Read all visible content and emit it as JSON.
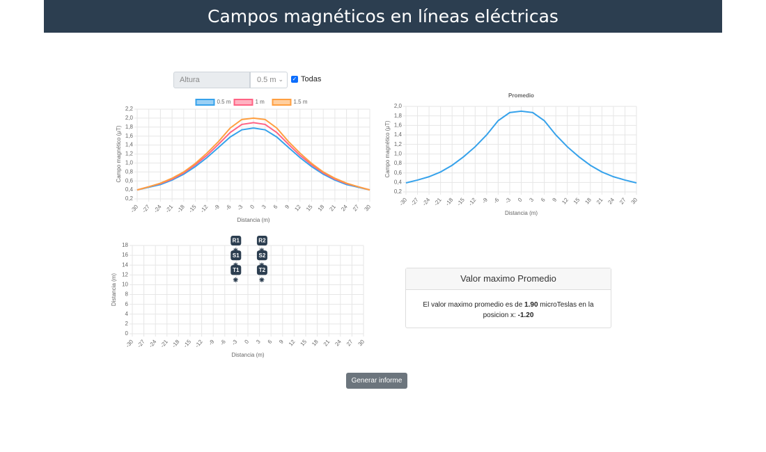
{
  "header": {
    "title": "Campos magnéticos en líneas eléctricas"
  },
  "controls": {
    "label": "Altura",
    "selected": "0.5 m",
    "checkbox": "Todas"
  },
  "chart_data": [
    {
      "type": "line",
      "ylabel": "Campo magnético (μT)",
      "xlabel": "Distancia (m)",
      "x": [
        -30,
        -27,
        -24,
        -21,
        -18,
        -15,
        -12,
        -9,
        -6,
        -3,
        0,
        3,
        6,
        9,
        12,
        15,
        18,
        21,
        24,
        27,
        30
      ],
      "series": [
        {
          "name": "0.5 m",
          "color": "#36a2eb",
          "values": [
            0.4,
            0.46,
            0.52,
            0.62,
            0.75,
            0.92,
            1.12,
            1.35,
            1.58,
            1.74,
            1.78,
            1.74,
            1.58,
            1.35,
            1.12,
            0.92,
            0.75,
            0.62,
            0.52,
            0.46,
            0.4
          ]
        },
        {
          "name": "1 m",
          "color": "#ff6384",
          "values": [
            0.4,
            0.47,
            0.54,
            0.64,
            0.78,
            0.96,
            1.17,
            1.42,
            1.68,
            1.86,
            1.9,
            1.86,
            1.68,
            1.42,
            1.17,
            0.96,
            0.78,
            0.64,
            0.54,
            0.47,
            0.4
          ]
        },
        {
          "name": "1.5 m",
          "color": "#ff9f40",
          "values": [
            0.4,
            0.47,
            0.55,
            0.66,
            0.8,
            0.99,
            1.22,
            1.48,
            1.78,
            1.97,
            2.0,
            1.97,
            1.78,
            1.48,
            1.22,
            0.99,
            0.8,
            0.66,
            0.55,
            0.47,
            0.4
          ]
        }
      ],
      "xlim": [
        -30,
        30
      ],
      "xticks": [
        -30,
        -27,
        -24,
        -21,
        -18,
        -15,
        -12,
        -9,
        -6,
        -3,
        0,
        3,
        6,
        9,
        12,
        15,
        18,
        21,
        24,
        27,
        30
      ],
      "ylim": [
        0.2,
        2.2
      ],
      "yticks": [
        {
          "value": 0.2,
          "label": "0,2"
        },
        {
          "value": 0.4,
          "label": "0,4"
        },
        {
          "value": 0.6,
          "label": "0,6"
        },
        {
          "value": 0.8,
          "label": "0,8"
        },
        {
          "value": 1.0,
          "label": "1,0"
        },
        {
          "value": 1.2,
          "label": "1,2"
        },
        {
          "value": 1.4,
          "label": "1,4"
        },
        {
          "value": 1.6,
          "label": "1,6"
        },
        {
          "value": 1.8,
          "label": "1,8"
        },
        {
          "value": 2.0,
          "label": "2,0"
        },
        {
          "value": 2.2,
          "label": "2,2"
        }
      ],
      "grid": true
    },
    {
      "type": "line",
      "title": "Promedio",
      "ylabel": "Campo magnético (μT)",
      "xlabel": "Distancia (m)",
      "x": [
        -30,
        -27,
        -24,
        -21,
        -18,
        -15,
        -12,
        -9,
        -6,
        -3,
        0,
        3,
        6,
        9,
        12,
        15,
        18,
        21,
        24,
        27,
        30
      ],
      "color": "#36a2eb",
      "values": [
        0.39,
        0.45,
        0.52,
        0.62,
        0.76,
        0.94,
        1.15,
        1.4,
        1.7,
        1.87,
        1.9,
        1.87,
        1.7,
        1.4,
        1.15,
        0.94,
        0.76,
        0.62,
        0.52,
        0.45,
        0.39
      ],
      "xlim": [
        -30,
        30
      ],
      "xticks": [
        -30,
        -27,
        -24,
        -21,
        -18,
        -15,
        -12,
        -9,
        -6,
        -3,
        0,
        3,
        6,
        9,
        12,
        15,
        18,
        21,
        24,
        27,
        30
      ],
      "ylim": [
        0.2,
        2.0
      ],
      "yticks": [
        {
          "value": 0.2,
          "label": "0,2"
        },
        {
          "value": 0.4,
          "label": "0,4"
        },
        {
          "value": 0.6,
          "label": "0,6"
        },
        {
          "value": 0.8,
          "label": "0,8"
        },
        {
          "value": 1.0,
          "label": "1,0"
        },
        {
          "value": 1.2,
          "label": "1,2"
        },
        {
          "value": 1.4,
          "label": "1,4"
        },
        {
          "value": 1.6,
          "label": "1,6"
        },
        {
          "value": 1.8,
          "label": "1,8"
        },
        {
          "value": 2.0,
          "label": "2,0"
        }
      ],
      "grid": true
    },
    {
      "type": "scatter",
      "ylabel": "Distancia (m)",
      "xlabel": "Distancia (m)",
      "x": [
        -3.2,
        -3.2,
        -3.2,
        3.6,
        3.6,
        3.6
      ],
      "values": [
        17,
        14,
        11,
        17,
        14,
        11
      ],
      "labels": [
        "R1",
        "S1",
        "T1",
        "R2",
        "S2",
        "T2"
      ],
      "color": "#2c3e50",
      "xlim": [
        -30,
        30
      ],
      "xticks": [
        -30,
        -27,
        -24,
        -21,
        -18,
        -15,
        -12,
        -9,
        -6,
        -3,
        0,
        3,
        6,
        9,
        12,
        15,
        18,
        21,
        24,
        27,
        30
      ],
      "ylim": [
        0,
        18
      ],
      "yticks": [
        0,
        2,
        4,
        6,
        8,
        10,
        12,
        14,
        16,
        18
      ],
      "grid": true
    }
  ],
  "card": {
    "title": "Valor maximo Promedio",
    "text1": "El valor maximo promedio es de",
    "value": "1.90",
    "text2": "microTeslas en la posicion x:",
    "position": "-1.20"
  },
  "button": "Generar informe"
}
